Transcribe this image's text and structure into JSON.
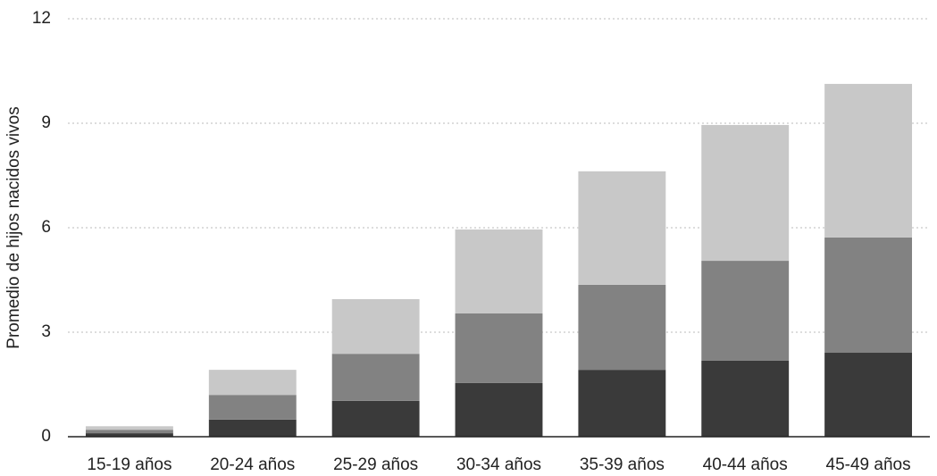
{
  "chart_data": {
    "type": "stacked_bar",
    "y_label": "Promedio de hijos nacidos vivos",
    "categories": [
      "15-19 años",
      "20-24 años",
      "25-29 años",
      "30-34 años",
      "35-39 años",
      "40-44 años",
      "45-49 años"
    ],
    "series": [
      {
        "color": "#3a3a3a",
        "values": [
          0.1,
          0.49,
          1.03,
          1.54,
          1.92,
          2.18,
          2.41
        ]
      },
      {
        "color": "#828282",
        "values": [
          0.1,
          0.71,
          1.35,
          2.0,
          2.44,
          2.87,
          3.31
        ]
      },
      {
        "color": "#c8c8c8",
        "values": [
          0.1,
          0.72,
          1.57,
          2.41,
          3.26,
          3.9,
          4.41
        ]
      }
    ],
    "ylim": [
      0,
      12
    ],
    "yticks": [
      0,
      3,
      6,
      9,
      12
    ],
    "grid": true
  }
}
